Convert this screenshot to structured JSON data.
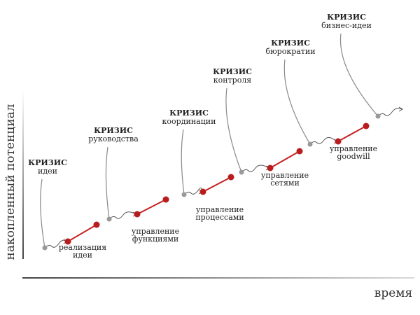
{
  "axes": {
    "y_label": "накопленный потенциал",
    "x_label": "время"
  },
  "crises": [
    {
      "title": "КРИЗИС",
      "subtitle": "идеи"
    },
    {
      "title": "КРИЗИС",
      "subtitle": "руководства"
    },
    {
      "title": "КРИЗИС",
      "subtitle": "координации"
    },
    {
      "title": "КРИЗИС",
      "subtitle": "контроля"
    },
    {
      "title": "КРИЗИС",
      "subtitle": "бюрократии"
    },
    {
      "title": "КРИЗИС",
      "subtitle": "бизнес-идеи"
    }
  ],
  "stages": [
    {
      "line1": "реализация",
      "line2": "идеи"
    },
    {
      "line1": "управление",
      "line2": "функциями"
    },
    {
      "line1": "управление",
      "line2": "процессами"
    },
    {
      "line1": "управление",
      "line2": "сетями"
    },
    {
      "line1": "управление",
      "line2": "goodwill"
    }
  ]
}
